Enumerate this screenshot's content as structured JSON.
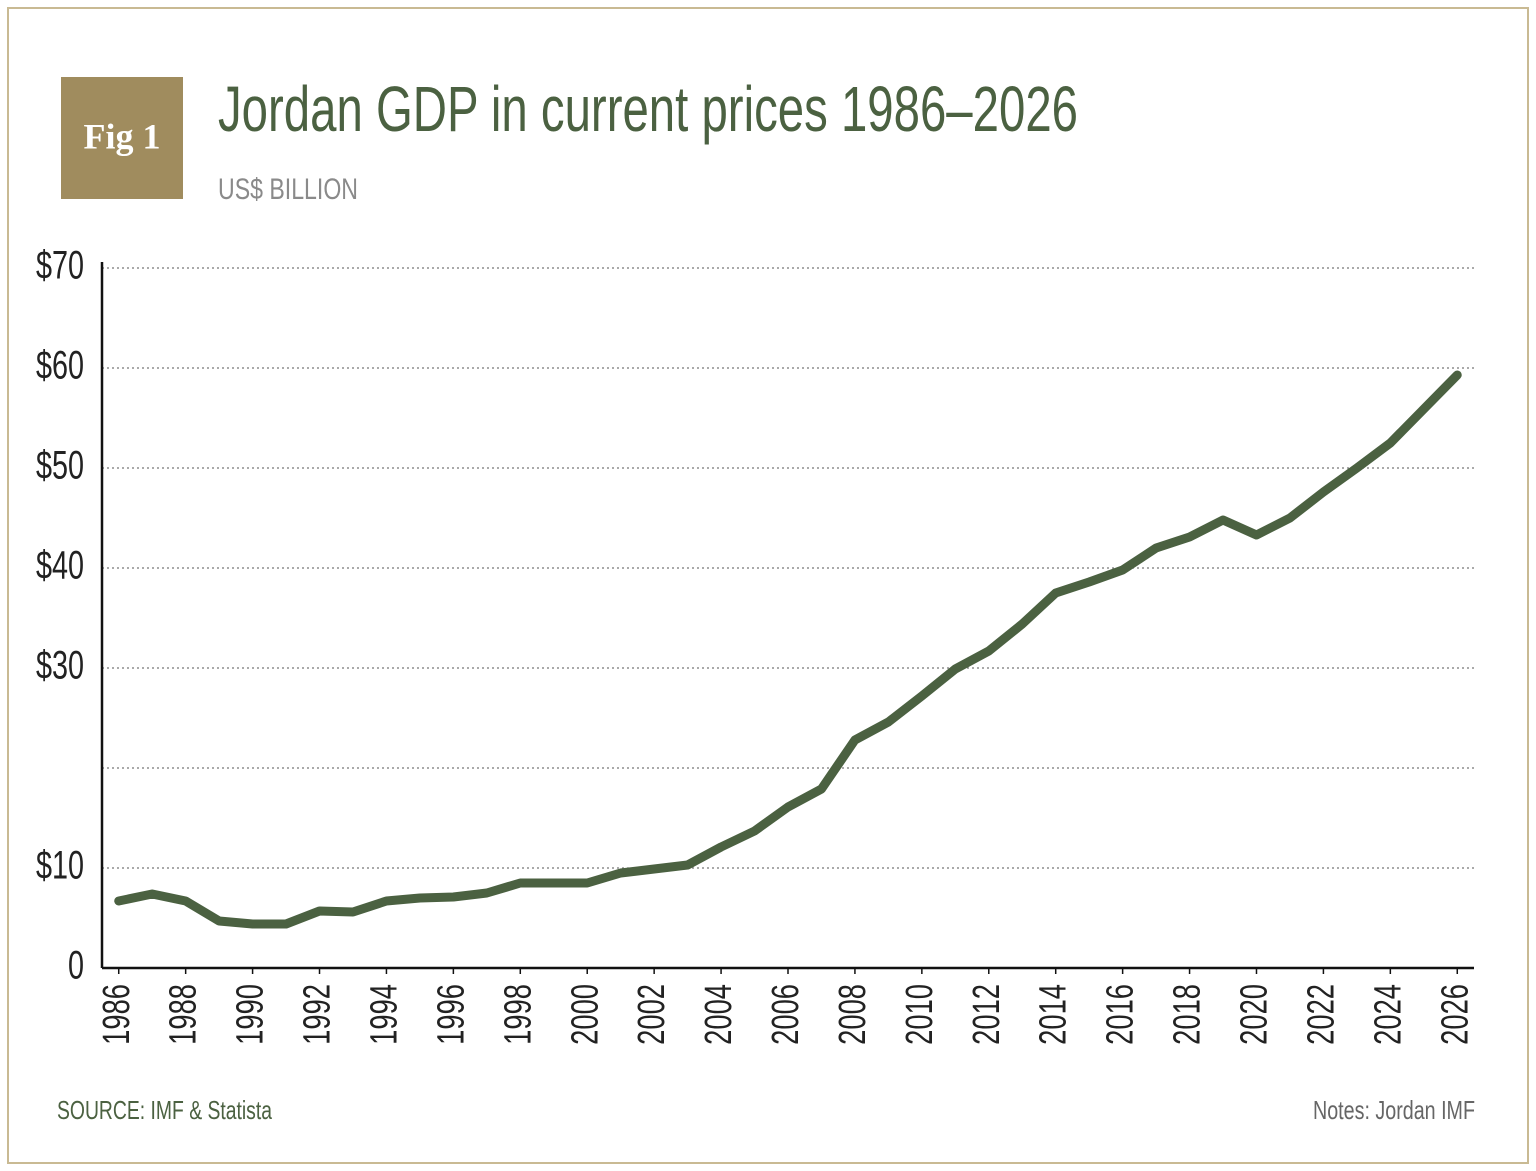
{
  "chart_data": {
    "type": "line",
    "badge": "Fig 1",
    "title": "Jordan GDP in current prices 1986–2026",
    "subtitle": "US$ BILLION",
    "source": "SOURCE: IMF & Statista",
    "notes": "Notes: Jordan IMF",
    "x": [
      1986,
      1987,
      1988,
      1989,
      1990,
      1991,
      1992,
      1993,
      1994,
      1995,
      1996,
      1997,
      1998,
      1999,
      2000,
      2001,
      2002,
      2003,
      2004,
      2005,
      2006,
      2007,
      2008,
      2009,
      2010,
      2011,
      2012,
      2013,
      2014,
      2015,
      2016,
      2017,
      2018,
      2019,
      2020,
      2021,
      2022,
      2023,
      2024,
      2025,
      2026
    ],
    "values": [
      6.7,
      7.4,
      6.7,
      4.7,
      4.4,
      4.4,
      5.7,
      5.6,
      6.7,
      7.0,
      7.1,
      7.5,
      8.5,
      8.5,
      8.5,
      9.5,
      9.9,
      10.3,
      12.1,
      13.7,
      16.1,
      17.9,
      22.8,
      24.6,
      27.2,
      29.9,
      31.7,
      34.4,
      37.5,
      38.6,
      39.8,
      42.0,
      43.1,
      44.8,
      43.3,
      45.0,
      47.6,
      50.0,
      52.5,
      55.9,
      59.3
    ],
    "color": "#4b6141",
    "xlim": [
      1985.5,
      2026.5
    ],
    "xticks": [
      1986,
      1988,
      1990,
      1992,
      1994,
      1996,
      1998,
      2000,
      2002,
      2004,
      2006,
      2008,
      2010,
      2012,
      2014,
      2016,
      2018,
      2020,
      2022,
      2024,
      2026
    ],
    "ylim": [
      0,
      70
    ],
    "yticks": [
      0,
      {
        "value": 10,
        "label": "$10"
      },
      {
        "value": 20,
        "label": null
      },
      {
        "value": 30,
        "label": "$30"
      },
      {
        "value": 40,
        "label": "$40"
      },
      {
        "value": 50,
        "label": "$50"
      },
      {
        "value": 60,
        "label": "$60"
      },
      {
        "value": 70,
        "label": "$70"
      }
    ],
    "grid": true
  }
}
